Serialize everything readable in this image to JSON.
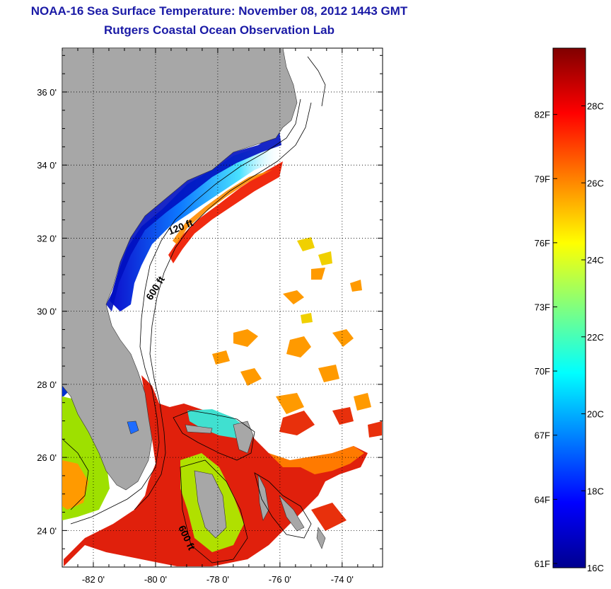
{
  "header": {
    "title": "NOAA-16 Sea Surface Temperature:  November 08, 2012 1443 GMT",
    "subtitle": "Rutgers Coastal Ocean Observation Lab"
  },
  "map": {
    "lat_labels": [
      "36 0'",
      "34 0'",
      "32 0'",
      "30 0'",
      "28 0'",
      "26 0'",
      "24 0'"
    ],
    "lon_labels": [
      "-82 0'",
      "-80 0'",
      "-78 0'",
      "-76 0'",
      "-74 0'"
    ],
    "lat_range": [
      23,
      37.2
    ],
    "lon_range": [
      -83,
      -72.7
    ],
    "grid": "dotted",
    "isobath_labels": [
      "120 ft",
      "600 ft",
      "600 ft"
    ],
    "land_color": "#a7a7a7",
    "cloud_color": "#ffffff"
  },
  "colorbar": {
    "fahrenheit_labels": [
      "82F",
      "79F",
      "76F",
      "73F",
      "70F",
      "67F",
      "64F",
      "61F"
    ],
    "celsius_labels": [
      "28C",
      "26C",
      "24C",
      "22C",
      "20C",
      "18C",
      "16C"
    ],
    "range_celsius": [
      16,
      29.5
    ],
    "colormap": "jet"
  }
}
